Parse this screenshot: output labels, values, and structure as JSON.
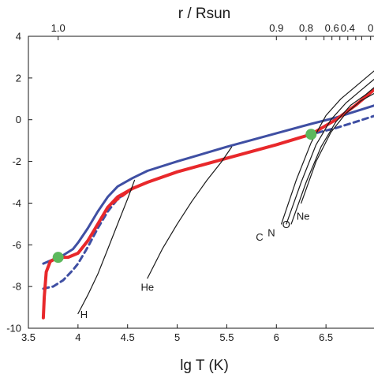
{
  "chart_data": {
    "type": "line",
    "title": "",
    "xlabel": "lg T (K)",
    "ylabel": "",
    "top_axis_label": "r / Rsun",
    "xlim": [
      3.5,
      7.0
    ],
    "ylim": [
      -10,
      4
    ],
    "x_ticks": [
      3.5,
      4,
      4.5,
      5,
      5.5,
      6,
      6.5
    ],
    "x_tick_labels": [
      "3.5",
      "4",
      "4.5",
      "5",
      "5.5",
      "6",
      "6.5"
    ],
    "y_ticks": [
      -10,
      -8,
      -6,
      -4,
      -2,
      0,
      2,
      4
    ],
    "y_tick_labels": [
      "-10",
      "-8",
      "-6",
      "-4",
      "-2",
      "0",
      "2",
      "4"
    ],
    "top_ticks": [
      {
        "x": 3.8,
        "label": "1.0"
      },
      {
        "x": 6.0,
        "label": "0.9"
      },
      {
        "x": 6.3,
        "label": "0.8"
      },
      {
        "x": 6.48,
        "label": ""
      },
      {
        "x": 6.56,
        "label": "0.6"
      },
      {
        "x": 6.64,
        "label": ""
      },
      {
        "x": 6.72,
        "label": "0.4"
      },
      {
        "x": 6.8,
        "label": ""
      },
      {
        "x": 6.86,
        "label": ""
      },
      {
        "x": 6.95,
        "label": "0"
      }
    ],
    "grid": false,
    "legend": "none",
    "colors": {
      "red": "#e8282b",
      "blue": "#3f4fa3",
      "green": "#5cb85c",
      "black": "#1a1a1a"
    },
    "series": [
      {
        "style": "solid",
        "color": "blue",
        "x": [
          3.65,
          3.75,
          3.85,
          3.95,
          4.0,
          4.1,
          4.2,
          4.3,
          4.4,
          4.55,
          4.7,
          5.0,
          5.5,
          6.0,
          6.35,
          6.6,
          6.8,
          7.0
        ],
        "y": [
          -6.9,
          -6.7,
          -6.5,
          -6.2,
          -5.9,
          -5.2,
          -4.4,
          -3.7,
          -3.2,
          -2.8,
          -2.45,
          -2.0,
          -1.3,
          -0.65,
          -0.2,
          0.1,
          0.4,
          0.7
        ]
      },
      {
        "style": "dashed",
        "color": "blue",
        "x": [
          3.65,
          3.75,
          3.85,
          3.95,
          4.0,
          4.1,
          4.2,
          4.3,
          4.4,
          4.55,
          4.7,
          5.0,
          5.5,
          6.0,
          6.35,
          6.6,
          6.8,
          7.0
        ],
        "y": [
          -8.1,
          -8.0,
          -7.7,
          -7.2,
          -6.9,
          -6.1,
          -5.2,
          -4.4,
          -3.8,
          -3.3,
          -3.0,
          -2.5,
          -1.85,
          -1.2,
          -0.7,
          -0.4,
          -0.1,
          0.2
        ]
      },
      {
        "style": "solid",
        "color": "red",
        "x": [
          3.65,
          3.66,
          3.68,
          3.72,
          3.8,
          3.9,
          4.0,
          4.1,
          4.2,
          4.3,
          4.4,
          4.55,
          4.7,
          5.0,
          5.5,
          6.0,
          6.35,
          6.6,
          6.8,
          7.0
        ],
        "y": [
          -9.5,
          -8.5,
          -7.3,
          -6.8,
          -6.6,
          -6.6,
          -6.4,
          -5.8,
          -5.0,
          -4.2,
          -3.7,
          -3.3,
          -3.0,
          -2.5,
          -1.85,
          -1.2,
          -0.7,
          0.0,
          0.7,
          1.5
        ]
      },
      {
        "style": "dashed",
        "color": "red",
        "x": [
          4.35,
          4.55,
          4.7,
          5.0,
          5.5,
          6.0,
          6.35
        ],
        "y": [
          -4.0,
          -3.3,
          -3.0,
          -2.5,
          -1.85,
          -1.2,
          -0.7
        ]
      },
      {
        "style": "thin",
        "color": "black",
        "label": "H",
        "x": [
          4.0,
          4.1,
          4.2,
          4.3,
          4.4,
          4.5,
          4.57
        ],
        "y": [
          -9.3,
          -8.4,
          -7.4,
          -6.2,
          -5.0,
          -3.8,
          -2.9
        ]
      },
      {
        "style": "thin",
        "color": "black",
        "label": "He",
        "x": [
          4.7,
          4.85,
          5.0,
          5.15,
          5.3,
          5.45,
          5.55
        ],
        "y": [
          -7.6,
          -6.2,
          -5.0,
          -3.9,
          -2.9,
          -2.0,
          -1.3
        ]
      },
      {
        "style": "thin",
        "color": "black",
        "label": "C",
        "x": [
          6.05,
          6.2,
          6.35,
          6.5,
          6.65,
          6.8,
          7.0
        ],
        "y": [
          -5.0,
          -2.9,
          -1.1,
          0.2,
          1.0,
          1.6,
          2.4
        ]
      },
      {
        "style": "thin",
        "color": "black",
        "label": "N",
        "x": [
          6.1,
          6.25,
          6.4,
          6.55,
          6.7,
          6.85,
          7.0
        ],
        "y": [
          -5.0,
          -3.0,
          -1.2,
          0.0,
          0.8,
          1.4,
          2.0
        ]
      },
      {
        "style": "thin",
        "color": "black",
        "label": "O",
        "x": [
          6.15,
          6.3,
          6.45,
          6.6,
          6.75,
          6.9,
          7.0
        ],
        "y": [
          -5.0,
          -3.0,
          -1.3,
          -0.1,
          0.7,
          1.2,
          1.6
        ]
      },
      {
        "style": "thin",
        "color": "black",
        "label": "Ne",
        "x": [
          6.25,
          6.4,
          6.55,
          6.7,
          6.85,
          7.0
        ],
        "y": [
          -4.0,
          -2.0,
          -0.6,
          0.3,
          0.9,
          1.3
        ]
      }
    ],
    "markers": [
      {
        "x": 3.8,
        "y": -6.6,
        "color": "green"
      },
      {
        "x": 6.35,
        "y": -0.7,
        "color": "green"
      }
    ],
    "curve_labels": [
      {
        "text": "H",
        "x": 4.06,
        "y": -9.5
      },
      {
        "text": "He",
        "x": 4.7,
        "y": -8.2
      },
      {
        "text": "C",
        "x": 5.83,
        "y": -5.8
      },
      {
        "text": "N",
        "x": 5.95,
        "y": -5.6
      },
      {
        "text": "O",
        "x": 6.1,
        "y": -5.2
      },
      {
        "text": "Ne",
        "x": 6.27,
        "y": -4.8
      }
    ]
  }
}
